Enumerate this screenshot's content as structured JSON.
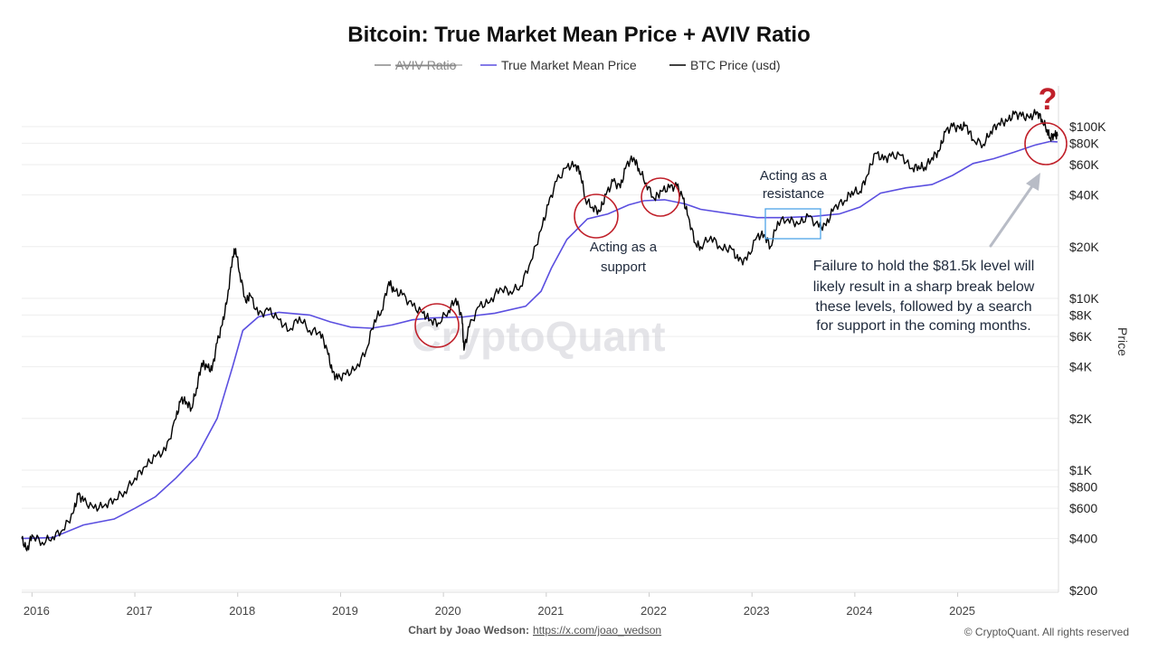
{
  "chart_data": {
    "type": "line",
    "title": "Bitcoin: True Market Mean Price + AVIV Ratio",
    "legend": {
      "placement": "top-center",
      "entries": [
        {
          "name": "AVIV Ratio",
          "color": "#888888",
          "hidden": true
        },
        {
          "name": "True Market Mean Price",
          "color": "#5b4fe0"
        },
        {
          "name": "BTC Price (usd)",
          "color": "#000000"
        }
      ]
    },
    "x_ticks": [
      "2016",
      "2017",
      "2018",
      "2019",
      "2020",
      "2021",
      "2022",
      "2023",
      "2024",
      "2025"
    ],
    "y_ticks": [
      {
        "label": "$100K",
        "value": 100000
      },
      {
        "label": "$80K",
        "value": 80000
      },
      {
        "label": "$60K",
        "value": 60000
      },
      {
        "label": "$40K",
        "value": 40000
      },
      {
        "label": "$20K",
        "value": 20000
      },
      {
        "label": "$10K",
        "value": 10000
      },
      {
        "label": "$8K",
        "value": 8000
      },
      {
        "label": "$6K",
        "value": 6000
      },
      {
        "label": "$4K",
        "value": 4000
      },
      {
        "label": "$2K",
        "value": 2000
      },
      {
        "label": "$1K",
        "value": 1000
      },
      {
        "label": "$800",
        "value": 800
      },
      {
        "label": "$600",
        "value": 600
      },
      {
        "label": "$400",
        "value": 400
      },
      {
        "label": "$200",
        "value": 200
      }
    ],
    "ylabel": "Price",
    "y_scale": "log",
    "ylim": [
      200,
      200000
    ],
    "xlim": [
      2015.9,
      2025.98
    ],
    "grid": true,
    "series": [
      {
        "name": "BTC Price (usd)",
        "color": "#000000",
        "points": [
          [
            2015.9,
            400
          ],
          [
            2015.95,
            340
          ],
          [
            2016.0,
            420
          ],
          [
            2016.1,
            380
          ],
          [
            2016.2,
            410
          ],
          [
            2016.3,
            450
          ],
          [
            2016.4,
            560
          ],
          [
            2016.45,
            720
          ],
          [
            2016.5,
            660
          ],
          [
            2016.6,
            600
          ],
          [
            2016.7,
            620
          ],
          [
            2016.8,
            680
          ],
          [
            2016.9,
            750
          ],
          [
            2017.0,
            900
          ],
          [
            2017.1,
            1050
          ],
          [
            2017.2,
            1200
          ],
          [
            2017.3,
            1300
          ],
          [
            2017.4,
            2000
          ],
          [
            2017.45,
            2600
          ],
          [
            2017.5,
            2500
          ],
          [
            2017.55,
            2300
          ],
          [
            2017.6,
            3000
          ],
          [
            2017.65,
            4200
          ],
          [
            2017.7,
            4000
          ],
          [
            2017.75,
            3800
          ],
          [
            2017.8,
            5500
          ],
          [
            2017.85,
            7000
          ],
          [
            2017.9,
            10000
          ],
          [
            2017.95,
            17500
          ],
          [
            2017.98,
            19500
          ],
          [
            2018.02,
            14000
          ],
          [
            2018.08,
            9500
          ],
          [
            2018.12,
            10500
          ],
          [
            2018.2,
            8000
          ],
          [
            2018.3,
            8500
          ],
          [
            2018.4,
            7500
          ],
          [
            2018.5,
            6500
          ],
          [
            2018.6,
            7800
          ],
          [
            2018.7,
            6500
          ],
          [
            2018.8,
            6400
          ],
          [
            2018.87,
            5000
          ],
          [
            2018.92,
            3700
          ],
          [
            2018.97,
            3400
          ],
          [
            2019.05,
            3600
          ],
          [
            2019.15,
            3900
          ],
          [
            2019.25,
            5000
          ],
          [
            2019.33,
            7500
          ],
          [
            2019.4,
            8500
          ],
          [
            2019.47,
            12500
          ],
          [
            2019.52,
            11000
          ],
          [
            2019.6,
            10500
          ],
          [
            2019.7,
            9000
          ],
          [
            2019.8,
            8200
          ],
          [
            2019.87,
            7500
          ],
          [
            2019.95,
            7200
          ],
          [
            2020.05,
            8500
          ],
          [
            2020.12,
            10000
          ],
          [
            2020.18,
            7800
          ],
          [
            2020.2,
            5000
          ],
          [
            2020.25,
            6800
          ],
          [
            2020.35,
            9000
          ],
          [
            2020.45,
            9500
          ],
          [
            2020.55,
            11500
          ],
          [
            2020.65,
            11000
          ],
          [
            2020.75,
            11800
          ],
          [
            2020.85,
            16500
          ],
          [
            2020.95,
            25000
          ],
          [
            2021.02,
            35000
          ],
          [
            2021.1,
            48000
          ],
          [
            2021.2,
            58000
          ],
          [
            2021.28,
            60000
          ],
          [
            2021.33,
            55000
          ],
          [
            2021.38,
            38000
          ],
          [
            2021.45,
            34000
          ],
          [
            2021.52,
            32000
          ],
          [
            2021.58,
            40000
          ],
          [
            2021.65,
            48000
          ],
          [
            2021.72,
            44000
          ],
          [
            2021.78,
            60000
          ],
          [
            2021.85,
            66000
          ],
          [
            2021.9,
            57000
          ],
          [
            2021.97,
            47000
          ],
          [
            2022.05,
            38000
          ],
          [
            2022.12,
            42000
          ],
          [
            2022.2,
            44000
          ],
          [
            2022.27,
            45000
          ],
          [
            2022.33,
            38000
          ],
          [
            2022.38,
            30000
          ],
          [
            2022.45,
            21000
          ],
          [
            2022.5,
            20000
          ],
          [
            2022.6,
            23000
          ],
          [
            2022.7,
            19500
          ],
          [
            2022.8,
            19500
          ],
          [
            2022.87,
            16500
          ],
          [
            2022.95,
            16700
          ],
          [
            2023.05,
            23000
          ],
          [
            2023.12,
            23500
          ],
          [
            2023.18,
            20000
          ],
          [
            2023.25,
            28000
          ],
          [
            2023.35,
            29000
          ],
          [
            2023.45,
            27000
          ],
          [
            2023.55,
            30000
          ],
          [
            2023.65,
            26000
          ],
          [
            2023.72,
            26500
          ],
          [
            2023.8,
            34000
          ],
          [
            2023.9,
            37000
          ],
          [
            2023.97,
            42000
          ],
          [
            2024.05,
            42000
          ],
          [
            2024.12,
            52000
          ],
          [
            2024.2,
            70000
          ],
          [
            2024.28,
            64000
          ],
          [
            2024.35,
            67000
          ],
          [
            2024.45,
            68000
          ],
          [
            2024.55,
            57000
          ],
          [
            2024.62,
            59000
          ],
          [
            2024.68,
            58000
          ],
          [
            2024.75,
            66000
          ],
          [
            2024.82,
            72000
          ],
          [
            2024.88,
            93000
          ],
          [
            2024.95,
            100000
          ],
          [
            2025.02,
            97000
          ],
          [
            2025.08,
            102000
          ],
          [
            2025.15,
            84000
          ],
          [
            2025.25,
            79000
          ],
          [
            2025.32,
            94000
          ],
          [
            2025.4,
            105000
          ],
          [
            2025.48,
            107000
          ],
          [
            2025.55,
            118000
          ],
          [
            2025.62,
            115000
          ],
          [
            2025.7,
            112000
          ],
          [
            2025.77,
            122000
          ],
          [
            2025.82,
            110000
          ],
          [
            2025.87,
            96000
          ],
          [
            2025.9,
            86000
          ],
          [
            2025.94,
            90000
          ],
          [
            2025.97,
            88000
          ]
        ]
      },
      {
        "name": "True Market Mean Price",
        "color": "#5b4fe0",
        "points": [
          [
            2015.9,
            400
          ],
          [
            2016.2,
            405
          ],
          [
            2016.5,
            480
          ],
          [
            2016.8,
            520
          ],
          [
            2017.0,
            600
          ],
          [
            2017.2,
            700
          ],
          [
            2017.4,
            900
          ],
          [
            2017.6,
            1200
          ],
          [
            2017.8,
            2000
          ],
          [
            2017.95,
            4000
          ],
          [
            2018.05,
            6500
          ],
          [
            2018.2,
            7800
          ],
          [
            2018.4,
            8300
          ],
          [
            2018.7,
            8000
          ],
          [
            2018.9,
            7300
          ],
          [
            2019.1,
            6800
          ],
          [
            2019.3,
            6700
          ],
          [
            2019.5,
            7000
          ],
          [
            2019.7,
            7500
          ],
          [
            2019.9,
            7700
          ],
          [
            2020.2,
            7800
          ],
          [
            2020.5,
            8200
          ],
          [
            2020.8,
            9000
          ],
          [
            2020.95,
            11000
          ],
          [
            2021.05,
            15000
          ],
          [
            2021.2,
            22000
          ],
          [
            2021.4,
            29000
          ],
          [
            2021.6,
            31000
          ],
          [
            2021.8,
            35000
          ],
          [
            2021.95,
            37000
          ],
          [
            2022.15,
            37500
          ],
          [
            2022.35,
            35500
          ],
          [
            2022.5,
            33000
          ],
          [
            2022.8,
            31000
          ],
          [
            2023.05,
            29500
          ],
          [
            2023.3,
            29500
          ],
          [
            2023.6,
            30000
          ],
          [
            2023.85,
            31000
          ],
          [
            2024.05,
            34000
          ],
          [
            2024.25,
            41000
          ],
          [
            2024.5,
            44000
          ],
          [
            2024.75,
            46000
          ],
          [
            2024.95,
            52000
          ],
          [
            2025.15,
            61000
          ],
          [
            2025.35,
            65000
          ],
          [
            2025.55,
            71000
          ],
          [
            2025.75,
            78000
          ],
          [
            2025.9,
            82000
          ],
          [
            2025.97,
            81500
          ]
        ]
      }
    ],
    "annotations": [
      {
        "id": "support",
        "lines": [
          "Acting as a",
          "support"
        ]
      },
      {
        "id": "resistance",
        "lines": [
          "Acting as a",
          "resistance"
        ]
      },
      {
        "id": "failure",
        "lines": [
          "Failure to hold the $81.5k level will",
          "likely result in a sharp break below",
          "these levels, followed by a search",
          "for support in the coming months."
        ]
      },
      {
        "id": "question",
        "lines": [
          "?"
        ]
      }
    ],
    "watermark": "CryptoQuant"
  },
  "footer": {
    "credit": "Chart by Joao Wedson:",
    "link": "https://x.com/joao_wedson",
    "copyright": "© CryptoQuant. All rights reserved"
  },
  "colors": {
    "btc": "#000000",
    "mean": "#5b4fe0",
    "circle": "#c0202a",
    "resistance_box": "#4da3e8",
    "arrow": "#b8bcc6",
    "grid": "#eeeeee"
  }
}
